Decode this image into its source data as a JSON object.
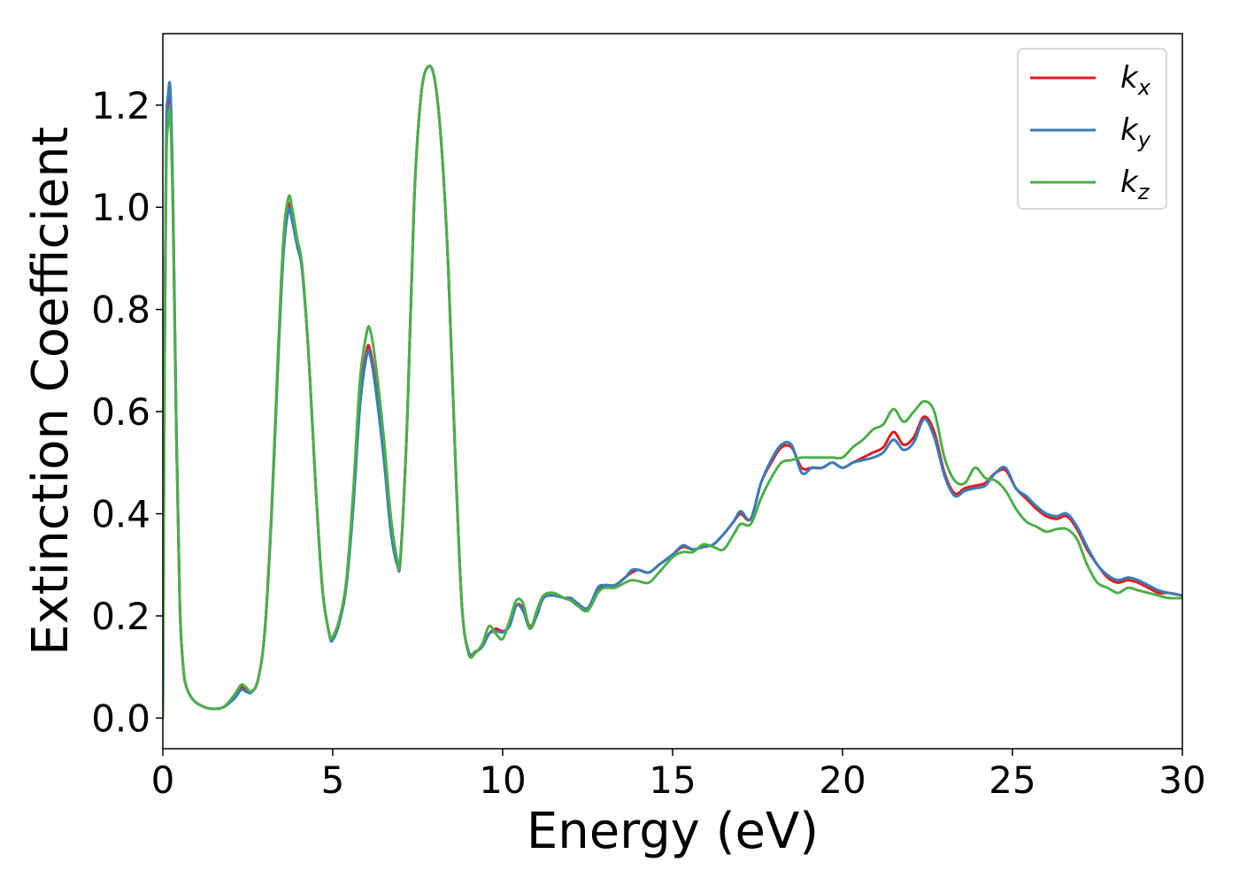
{
  "chart_data": {
    "type": "line",
    "title": "",
    "xlabel": "Energy (eV)",
    "ylabel": "Extinction Coefficient",
    "xlim": [
      0,
      30
    ],
    "ylim": [
      -0.06,
      1.34
    ],
    "xticks": [
      0,
      5,
      10,
      15,
      20,
      25,
      30
    ],
    "xtick_labels": [
      "0",
      "5",
      "10",
      "15",
      "20",
      "25",
      "30"
    ],
    "yticks": [
      0.0,
      0.2,
      0.4,
      0.6,
      0.8,
      1.0,
      1.2
    ],
    "ytick_labels": [
      "0.0",
      "0.2",
      "0.4",
      "0.6",
      "0.8",
      "1.0",
      "1.2"
    ],
    "grid": false,
    "legend_position": "top-right",
    "series": [
      {
        "name": "k_x",
        "label_base": "k",
        "label_sub": "x",
        "color": "#e41a1c",
        "x": [
          0.0,
          0.05,
          0.1,
          0.15,
          0.22,
          0.3,
          0.4,
          0.5,
          0.6,
          0.7,
          0.9,
          1.2,
          1.5,
          1.8,
          2.1,
          2.3,
          2.45,
          2.6,
          2.8,
          3.0,
          3.2,
          3.4,
          3.55,
          3.7,
          3.8,
          3.95,
          4.1,
          4.3,
          4.5,
          4.7,
          4.9,
          5.0,
          5.2,
          5.4,
          5.6,
          5.8,
          6.0,
          6.1,
          6.25,
          6.5,
          6.7,
          6.9,
          7.0,
          7.2,
          7.4,
          7.6,
          7.8,
          8.0,
          8.2,
          8.4,
          8.6,
          8.8,
          9.0,
          9.2,
          9.4,
          9.6,
          9.8,
          10.0,
          10.2,
          10.4,
          10.6,
          10.8,
          11.0,
          11.2,
          11.5,
          11.8,
          12.0,
          12.2,
          12.5,
          12.8,
          13.0,
          13.3,
          13.6,
          13.8,
          14.0,
          14.3,
          14.6,
          15.0,
          15.3,
          15.6,
          15.9,
          16.2,
          16.5,
          16.8,
          17.0,
          17.3,
          17.6,
          17.9,
          18.2,
          18.5,
          18.8,
          19.1,
          19.4,
          19.7,
          20.0,
          20.3,
          20.6,
          20.9,
          21.2,
          21.5,
          21.8,
          22.1,
          22.4,
          22.7,
          23.0,
          23.3,
          23.6,
          23.9,
          24.2,
          24.5,
          24.8,
          25.1,
          25.4,
          25.7,
          26.0,
          26.3,
          26.6,
          26.9,
          27.2,
          27.5,
          27.8,
          28.1,
          28.4,
          28.7,
          29.0,
          29.3,
          29.6,
          30.0
        ],
        "y": [
          0.0,
          0.7,
          1.12,
          1.2,
          1.22,
          1.0,
          0.55,
          0.22,
          0.1,
          0.06,
          0.035,
          0.022,
          0.018,
          0.022,
          0.04,
          0.06,
          0.055,
          0.05,
          0.075,
          0.17,
          0.4,
          0.72,
          0.92,
          1.005,
          0.985,
          0.93,
          0.88,
          0.7,
          0.45,
          0.25,
          0.165,
          0.155,
          0.19,
          0.26,
          0.42,
          0.62,
          0.72,
          0.72,
          0.66,
          0.52,
          0.38,
          0.3,
          0.32,
          0.6,
          1.02,
          1.22,
          1.275,
          1.25,
          1.12,
          0.88,
          0.52,
          0.22,
          0.13,
          0.13,
          0.14,
          0.165,
          0.175,
          0.17,
          0.18,
          0.22,
          0.215,
          0.18,
          0.2,
          0.235,
          0.24,
          0.235,
          0.235,
          0.225,
          0.215,
          0.25,
          0.26,
          0.26,
          0.275,
          0.285,
          0.29,
          0.285,
          0.3,
          0.32,
          0.335,
          0.33,
          0.335,
          0.34,
          0.36,
          0.385,
          0.4,
          0.39,
          0.46,
          0.5,
          0.53,
          0.53,
          0.49,
          0.49,
          0.49,
          0.5,
          0.49,
          0.5,
          0.51,
          0.52,
          0.53,
          0.56,
          0.535,
          0.55,
          0.59,
          0.56,
          0.48,
          0.44,
          0.45,
          0.455,
          0.46,
          0.48,
          0.485,
          0.45,
          0.43,
          0.41,
          0.395,
          0.39,
          0.395,
          0.37,
          0.33,
          0.3,
          0.275,
          0.265,
          0.27,
          0.265,
          0.255,
          0.245,
          0.245,
          0.24
        ]
      },
      {
        "name": "k_y",
        "label_base": "k",
        "label_sub": "y",
        "color": "#377eb8",
        "x": [
          0.0,
          0.05,
          0.1,
          0.15,
          0.22,
          0.3,
          0.4,
          0.5,
          0.6,
          0.7,
          0.9,
          1.2,
          1.5,
          1.8,
          2.1,
          2.3,
          2.45,
          2.6,
          2.8,
          3.0,
          3.2,
          3.4,
          3.55,
          3.7,
          3.8,
          3.95,
          4.1,
          4.3,
          4.5,
          4.7,
          4.9,
          5.0,
          5.2,
          5.4,
          5.6,
          5.8,
          6.0,
          6.1,
          6.25,
          6.5,
          6.7,
          6.9,
          7.0,
          7.2,
          7.4,
          7.6,
          7.8,
          8.0,
          8.2,
          8.4,
          8.6,
          8.8,
          9.0,
          9.2,
          9.4,
          9.6,
          9.8,
          10.0,
          10.2,
          10.4,
          10.6,
          10.8,
          11.0,
          11.2,
          11.5,
          11.8,
          12.0,
          12.2,
          12.5,
          12.8,
          13.0,
          13.3,
          13.6,
          13.8,
          14.0,
          14.3,
          14.6,
          15.0,
          15.3,
          15.6,
          15.9,
          16.2,
          16.5,
          16.8,
          17.0,
          17.3,
          17.6,
          17.9,
          18.2,
          18.5,
          18.8,
          19.1,
          19.4,
          19.7,
          20.0,
          20.3,
          20.6,
          20.9,
          21.2,
          21.5,
          21.8,
          22.1,
          22.4,
          22.7,
          23.0,
          23.3,
          23.6,
          23.9,
          24.2,
          24.5,
          24.8,
          25.1,
          25.4,
          25.7,
          26.0,
          26.3,
          26.6,
          26.9,
          27.2,
          27.5,
          27.8,
          28.1,
          28.4,
          28.7,
          29.0,
          29.3,
          29.6,
          30.0
        ],
        "y": [
          0.0,
          0.72,
          1.14,
          1.215,
          1.23,
          1.01,
          0.56,
          0.22,
          0.1,
          0.06,
          0.035,
          0.022,
          0.018,
          0.022,
          0.038,
          0.055,
          0.052,
          0.05,
          0.075,
          0.17,
          0.4,
          0.71,
          0.91,
          0.995,
          0.975,
          0.925,
          0.875,
          0.7,
          0.45,
          0.25,
          0.163,
          0.153,
          0.188,
          0.26,
          0.41,
          0.61,
          0.71,
          0.71,
          0.65,
          0.51,
          0.37,
          0.3,
          0.32,
          0.6,
          1.02,
          1.22,
          1.275,
          1.25,
          1.12,
          0.88,
          0.52,
          0.22,
          0.13,
          0.13,
          0.14,
          0.165,
          0.17,
          0.168,
          0.18,
          0.22,
          0.21,
          0.175,
          0.2,
          0.235,
          0.24,
          0.235,
          0.235,
          0.225,
          0.215,
          0.255,
          0.26,
          0.26,
          0.275,
          0.29,
          0.29,
          0.285,
          0.3,
          0.32,
          0.338,
          0.33,
          0.335,
          0.34,
          0.36,
          0.385,
          0.405,
          0.39,
          0.46,
          0.505,
          0.535,
          0.535,
          0.48,
          0.49,
          0.49,
          0.5,
          0.49,
          0.5,
          0.505,
          0.51,
          0.52,
          0.545,
          0.525,
          0.54,
          0.585,
          0.55,
          0.475,
          0.435,
          0.445,
          0.45,
          0.455,
          0.48,
          0.49,
          0.45,
          0.435,
          0.415,
          0.4,
          0.395,
          0.4,
          0.375,
          0.335,
          0.3,
          0.28,
          0.27,
          0.275,
          0.27,
          0.26,
          0.25,
          0.245,
          0.24
        ]
      },
      {
        "name": "k_z",
        "label_base": "k",
        "label_sub": "z",
        "color": "#4daf4a",
        "x": [
          0.0,
          0.05,
          0.1,
          0.15,
          0.22,
          0.3,
          0.4,
          0.5,
          0.6,
          0.7,
          0.9,
          1.2,
          1.5,
          1.8,
          2.1,
          2.3,
          2.45,
          2.6,
          2.8,
          3.0,
          3.2,
          3.4,
          3.55,
          3.7,
          3.8,
          3.95,
          4.1,
          4.3,
          4.5,
          4.7,
          4.9,
          5.0,
          5.2,
          5.4,
          5.6,
          5.8,
          6.0,
          6.1,
          6.25,
          6.5,
          6.7,
          6.9,
          7.0,
          7.2,
          7.4,
          7.6,
          7.8,
          8.0,
          8.2,
          8.4,
          8.6,
          8.8,
          9.0,
          9.2,
          9.4,
          9.6,
          9.8,
          10.0,
          10.2,
          10.4,
          10.6,
          10.8,
          11.0,
          11.2,
          11.5,
          11.8,
          12.0,
          12.2,
          12.5,
          12.8,
          13.0,
          13.3,
          13.6,
          13.8,
          14.0,
          14.3,
          14.6,
          15.0,
          15.3,
          15.6,
          15.9,
          16.2,
          16.5,
          16.8,
          17.0,
          17.3,
          17.6,
          17.9,
          18.2,
          18.5,
          18.8,
          19.1,
          19.4,
          19.7,
          20.0,
          20.3,
          20.6,
          20.9,
          21.2,
          21.5,
          21.8,
          22.1,
          22.4,
          22.7,
          23.0,
          23.3,
          23.6,
          23.9,
          24.2,
          24.5,
          24.8,
          25.1,
          25.4,
          25.7,
          26.0,
          26.3,
          26.6,
          26.9,
          27.2,
          27.5,
          27.8,
          28.1,
          28.4,
          28.7,
          29.0,
          29.3,
          29.6,
          30.0
        ],
        "y": [
          0.0,
          0.68,
          1.08,
          1.16,
          1.18,
          0.98,
          0.54,
          0.22,
          0.1,
          0.06,
          0.035,
          0.022,
          0.018,
          0.022,
          0.045,
          0.065,
          0.06,
          0.052,
          0.075,
          0.17,
          0.41,
          0.73,
          0.94,
          1.02,
          1.0,
          0.94,
          0.885,
          0.7,
          0.45,
          0.25,
          0.165,
          0.16,
          0.195,
          0.27,
          0.44,
          0.66,
          0.755,
          0.76,
          0.7,
          0.55,
          0.4,
          0.31,
          0.32,
          0.6,
          1.02,
          1.22,
          1.275,
          1.25,
          1.12,
          0.88,
          0.52,
          0.22,
          0.125,
          0.128,
          0.145,
          0.18,
          0.165,
          0.155,
          0.19,
          0.23,
          0.225,
          0.175,
          0.21,
          0.24,
          0.245,
          0.235,
          0.23,
          0.22,
          0.21,
          0.245,
          0.255,
          0.255,
          0.265,
          0.27,
          0.268,
          0.265,
          0.285,
          0.315,
          0.325,
          0.325,
          0.34,
          0.335,
          0.33,
          0.36,
          0.38,
          0.38,
          0.43,
          0.47,
          0.5,
          0.505,
          0.51,
          0.51,
          0.51,
          0.51,
          0.51,
          0.53,
          0.545,
          0.565,
          0.575,
          0.605,
          0.58,
          0.6,
          0.62,
          0.6,
          0.51,
          0.465,
          0.46,
          0.49,
          0.47,
          0.465,
          0.445,
          0.41,
          0.385,
          0.375,
          0.365,
          0.37,
          0.37,
          0.35,
          0.3,
          0.265,
          0.255,
          0.245,
          0.255,
          0.25,
          0.245,
          0.24,
          0.235,
          0.235
        ]
      }
    ]
  }
}
